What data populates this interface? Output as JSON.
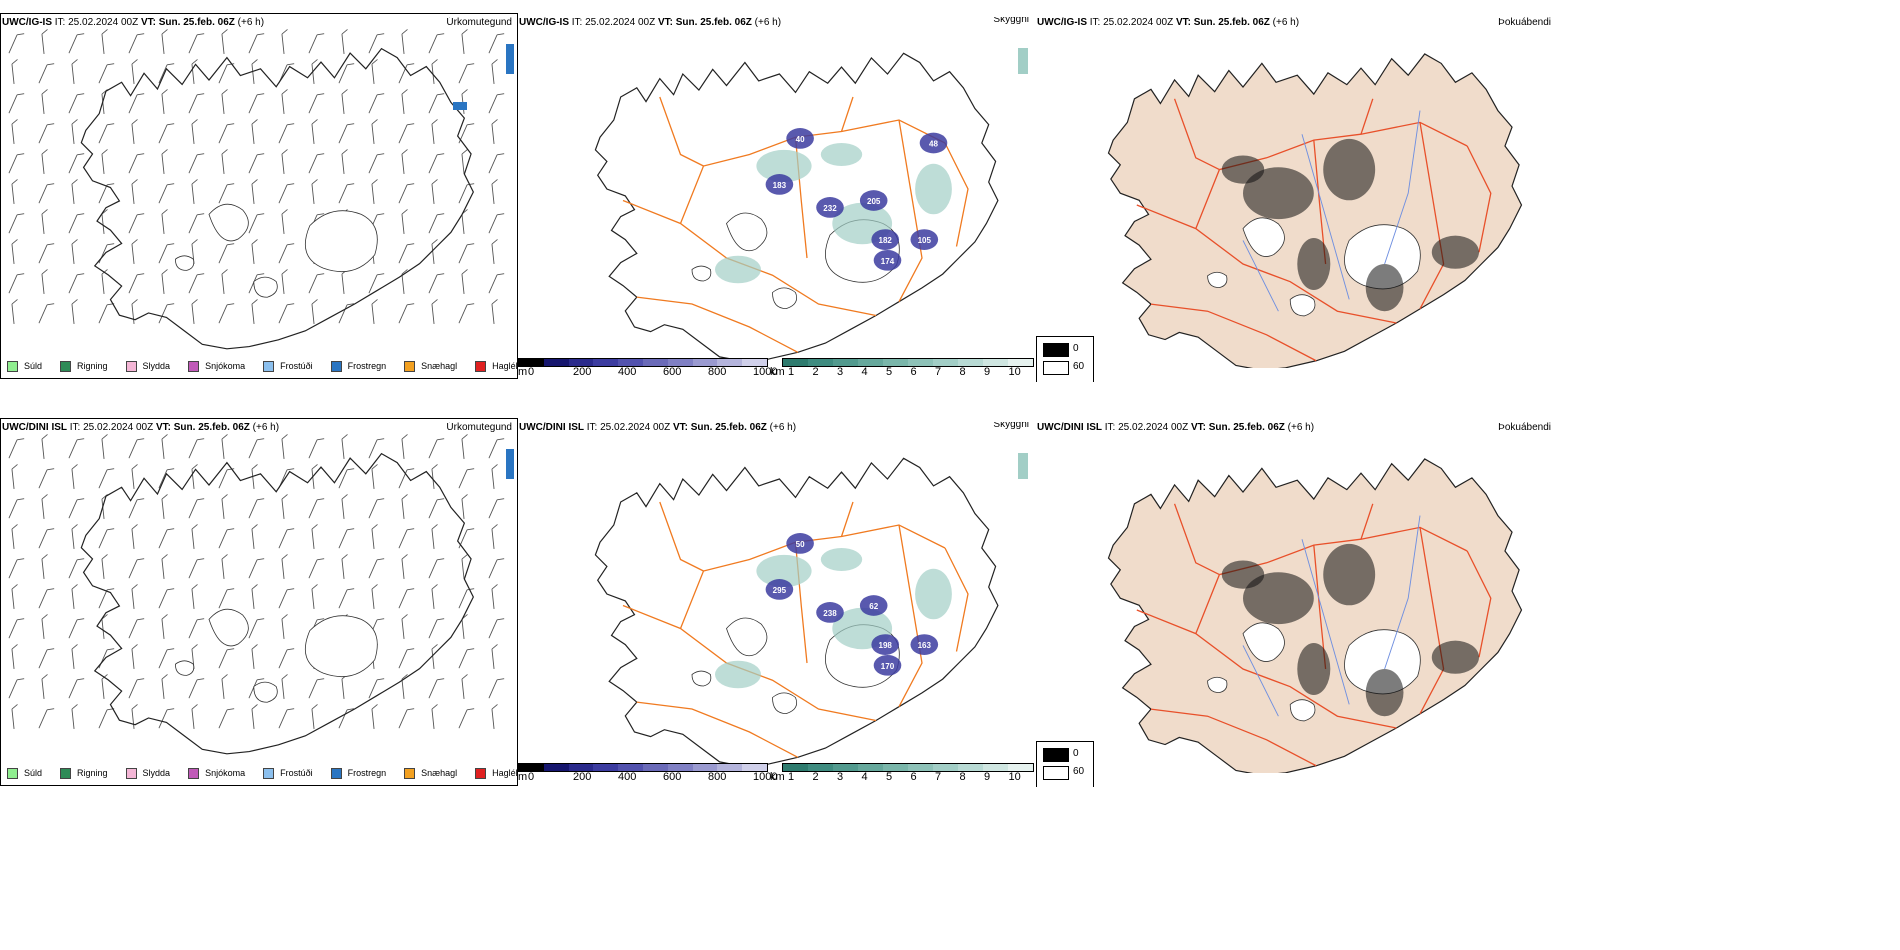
{
  "rows": [
    {
      "model": "UWC/IG-IS",
      "it_label": "IT:",
      "it_value": "25.02.2024 00Z",
      "vt_label": "VT:",
      "vt_value": "Sun. 25.feb. 06Z",
      "lead": "(+6 h)",
      "visibility_labels": [
        "183",
        "232",
        "182",
        "174",
        "105",
        "205",
        "40",
        "48"
      ]
    },
    {
      "model": "UWC/DINI ISL",
      "it_label": "IT:",
      "it_value": "25.02.2024 00Z",
      "vt_label": "VT:",
      "vt_value": "Sun. 25.feb. 06Z",
      "lead": "(+6 h)",
      "visibility_labels": [
        "295",
        "238",
        "198",
        "170",
        "163",
        "62",
        "50"
      ]
    }
  ],
  "panel_titles": {
    "precip": "Úrkomutegund",
    "visibility": "Skyggni",
    "fog": "Þokuábendi"
  },
  "precip_legend": [
    {
      "label": "Súld",
      "color": "#90ee90"
    },
    {
      "label": "Rigning",
      "color": "#2e8b57"
    },
    {
      "label": "Slydda",
      "color": "#f4b6d6"
    },
    {
      "label": "Snjókoma",
      "color": "#c05ab8"
    },
    {
      "label": "Frostúði",
      "color": "#8cc0ee"
    },
    {
      "label": "Frostregn",
      "color": "#2a75c2"
    },
    {
      "label": "Snæhagl",
      "color": "#f2a020"
    },
    {
      "label": "Haglél",
      "color": "#e02020"
    }
  ],
  "cloud_base_scale": {
    "unit": "m",
    "ticks": [
      "0",
      "200",
      "400",
      "600",
      "800",
      "1000"
    ],
    "colors": [
      "#000000",
      "#16166e",
      "#2a2a8c",
      "#3c3ca0",
      "#5252ae",
      "#6a6ab8",
      "#8080c4",
      "#9a9ad0",
      "#b4b4dc",
      "#d0d0ea"
    ]
  },
  "visibility_scale": {
    "unit": "km",
    "ticks": [
      "1",
      "2",
      "3",
      "4",
      "5",
      "6",
      "7",
      "8",
      "9",
      "10"
    ],
    "colors": [
      "#2e7b6e",
      "#3f8c80",
      "#529a8e",
      "#66a89c",
      "#7ab6aa",
      "#8ec2b8",
      "#a2cec6",
      "#b8dad4",
      "#cfe6e1",
      "#e6f2ef"
    ]
  },
  "fog_scale": {
    "ticks": [
      "0",
      "60"
    ],
    "colors": [
      "#000000",
      "#ffffff"
    ]
  },
  "colors": {
    "land_fog": "#f0dccb",
    "roads": "#f07a20",
    "roads_fog": "#e8502a",
    "rivers": "#7090e0"
  }
}
